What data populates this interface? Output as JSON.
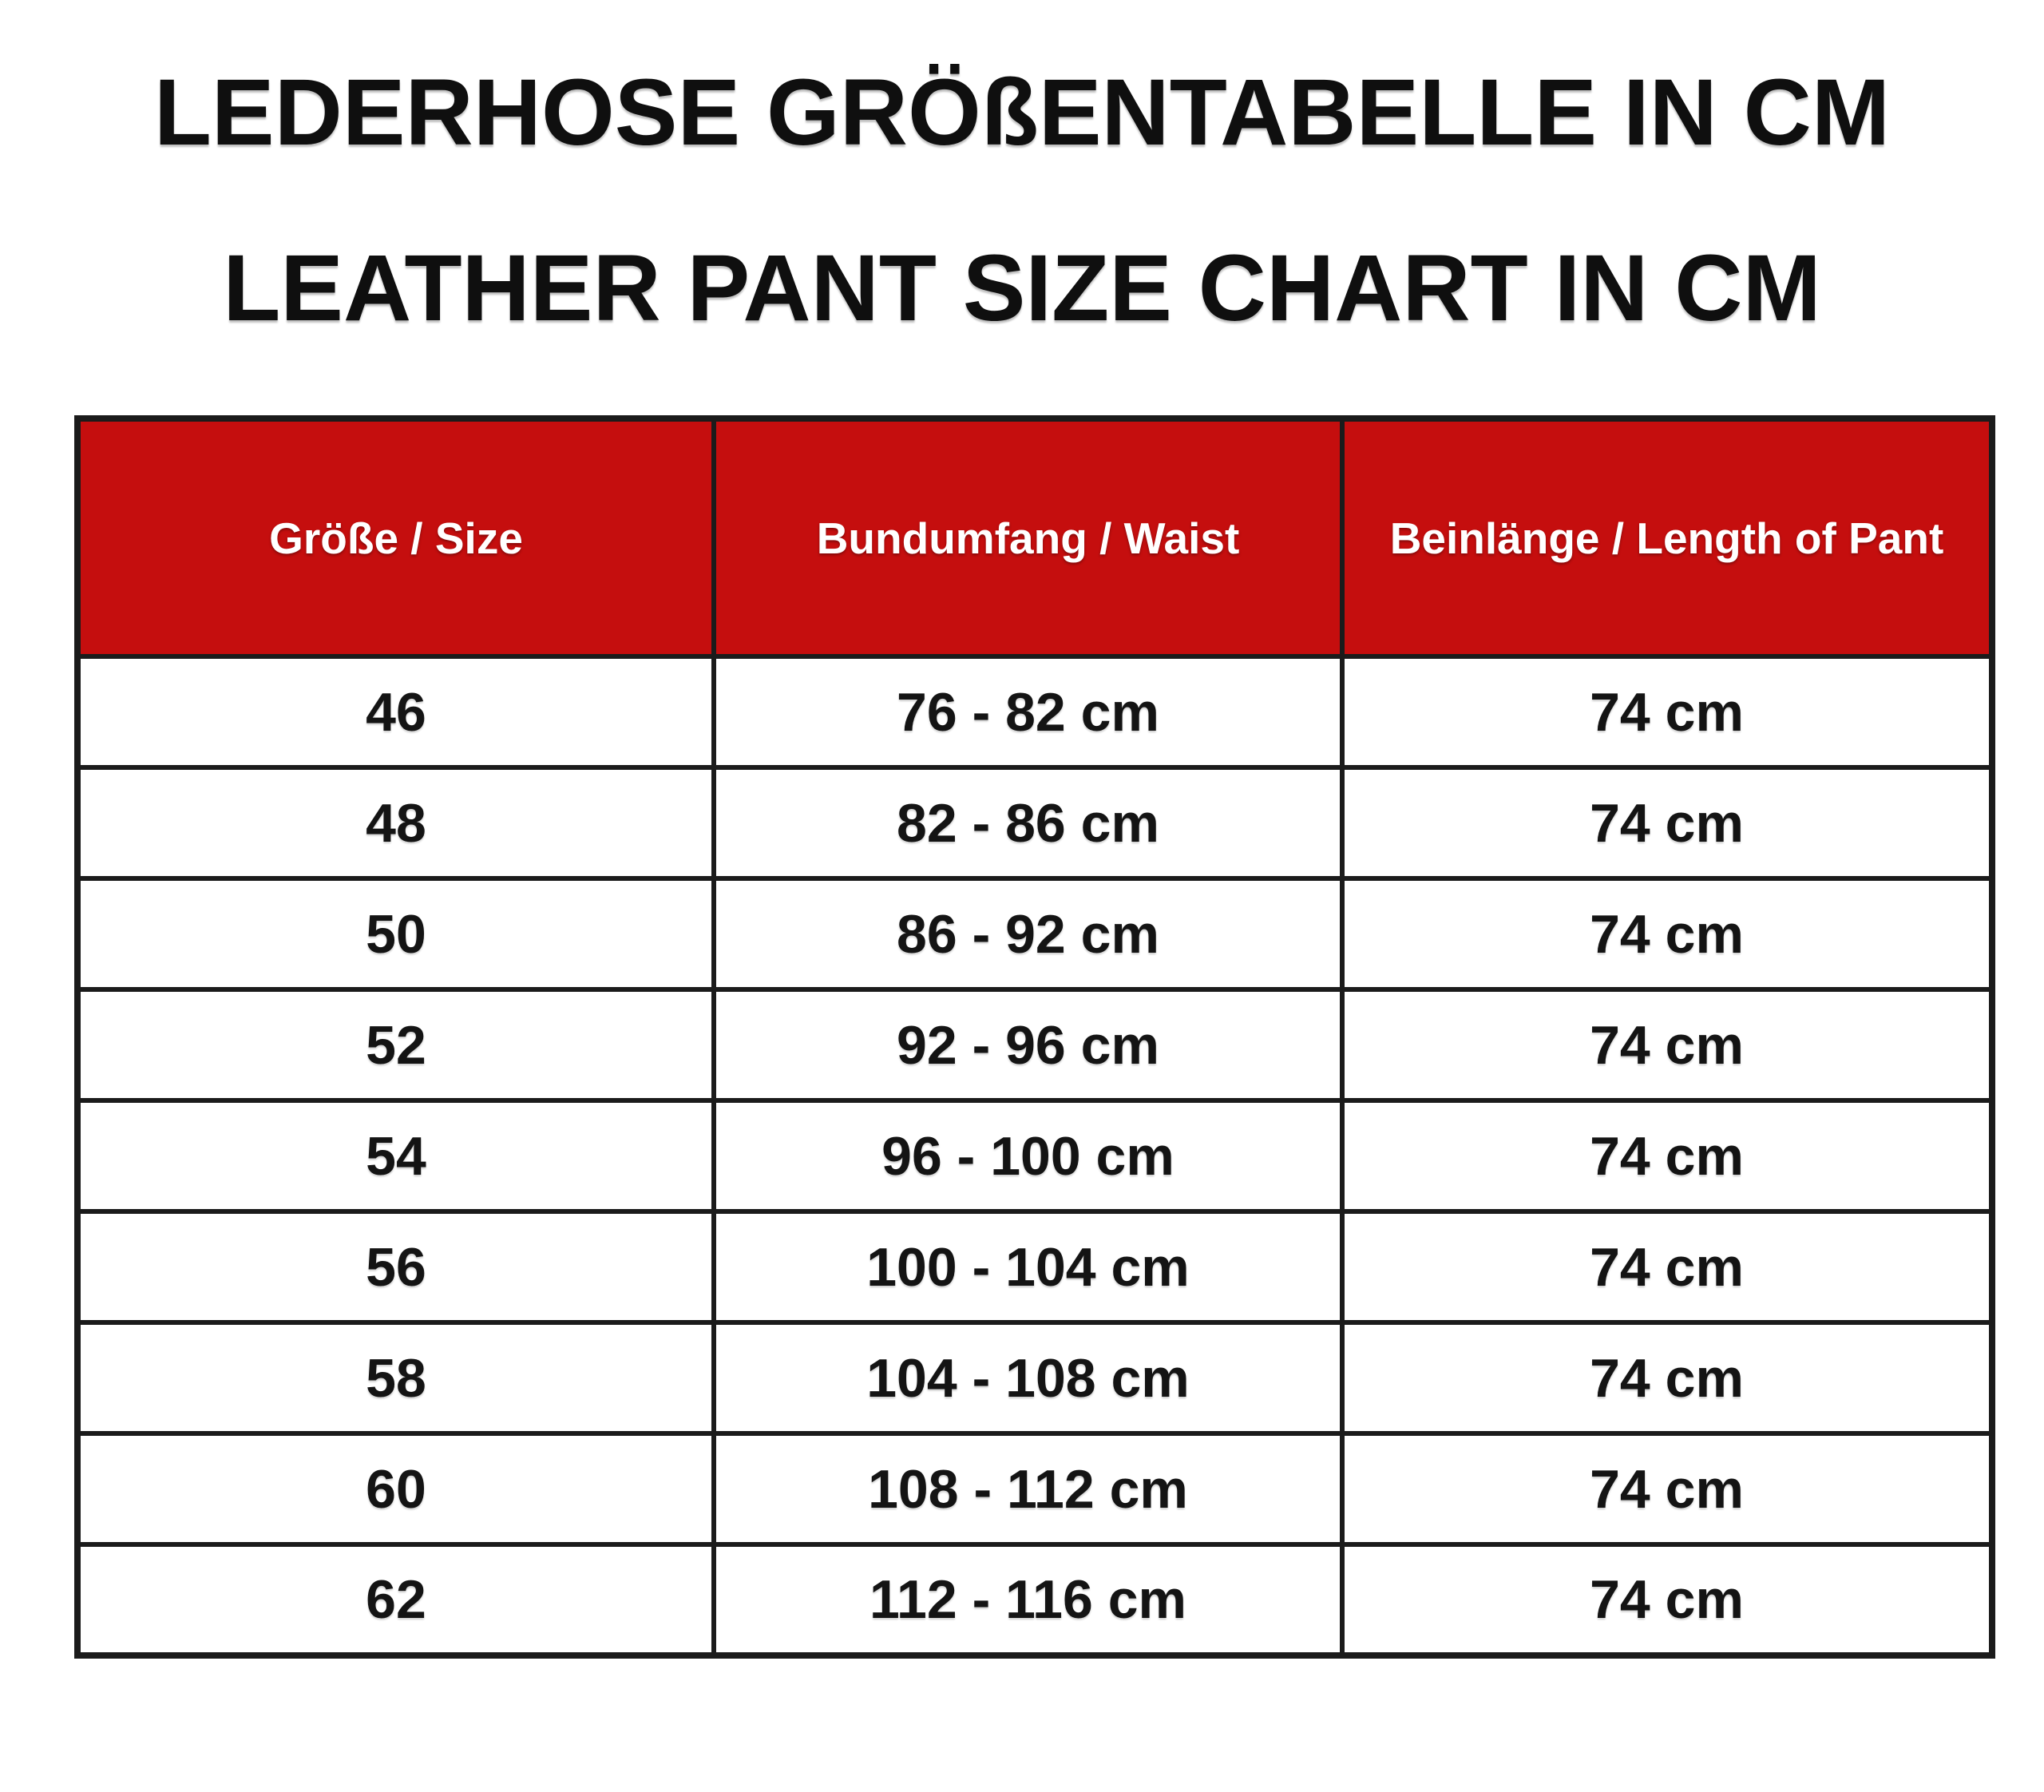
{
  "colors": {
    "accent": "#c50e0e",
    "header_text": "#ffffff",
    "border": "#1b1b1b",
    "text": "#141414",
    "background": "#ffffff"
  },
  "chart_data": {
    "type": "table",
    "title": "LEDERHOSE GRÖßENTABELLE IN CM",
    "subtitle": "LEATHER PANT SIZE CHART IN CM",
    "columns": [
      "Größe / Size",
      "Bundumfang / Waist",
      "Beinlänge / Length of Pant"
    ],
    "rows": [
      [
        "46",
        "76 - 82 cm",
        "74 cm"
      ],
      [
        "48",
        "82 - 86 cm",
        "74 cm"
      ],
      [
        "50",
        "86 - 92 cm",
        "74 cm"
      ],
      [
        "52",
        "92 - 96 cm",
        "74 cm"
      ],
      [
        "54",
        "96 - 100 cm",
        "74 cm"
      ],
      [
        "56",
        "100 - 104 cm",
        "74 cm"
      ],
      [
        "58",
        "104 - 108 cm",
        "74 cm"
      ],
      [
        "60",
        "108 - 112 cm",
        "74 cm"
      ],
      [
        "62",
        "112 - 116 cm",
        "74 cm"
      ]
    ]
  }
}
